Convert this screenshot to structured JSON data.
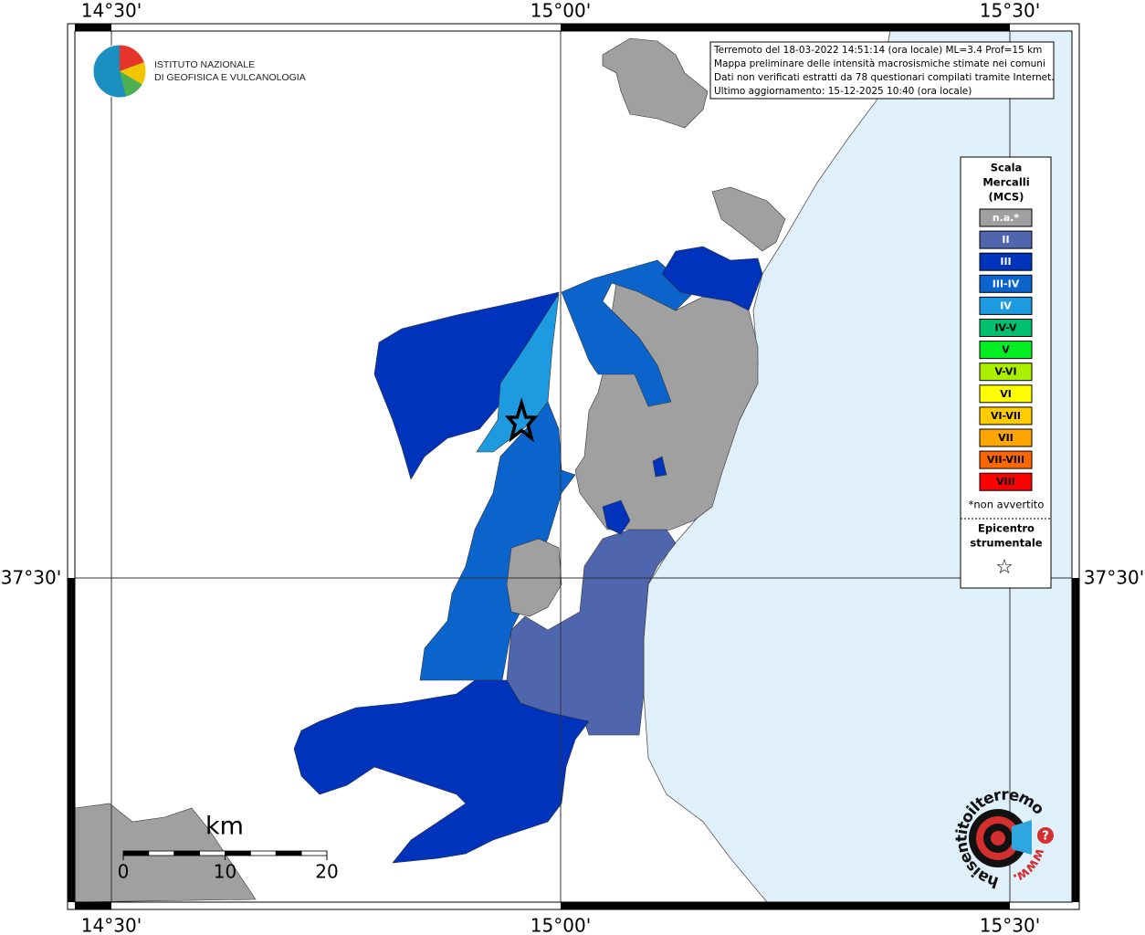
{
  "map": {
    "longitude_labels": [
      "14°30'",
      "15°00'",
      "15°30'"
    ],
    "latitude_label": "37°30'",
    "logo": {
      "lines": [
        "ISTITUTO NAZIONALE",
        "DI GEOFISICA E VULCANOLOGIA"
      ]
    },
    "info": {
      "lines": [
        "Terremoto del 18-03-2022 14:51:14 (ora locale) ML=3.4 Prof=15 km",
        "Mappa preliminare delle intensità macrosismiche stimate nei comuni",
        "Dati non verificati estratti da 78 questionari compilati tramite Internet.",
        "Ultimo aggiornamento: 15-12-2025 10:40 (ora locale)"
      ]
    },
    "legend": {
      "title": [
        "Scala",
        "Mercalli",
        "(MCS)"
      ],
      "classes": [
        {
          "label": "n.a.*",
          "color": "#a0a0a0"
        },
        {
          "label": "II",
          "color": "#4f66ae"
        },
        {
          "label": "III",
          "color": "#0033bb"
        },
        {
          "label": "III-IV",
          "color": "#0a64cc"
        },
        {
          "label": "IV",
          "color": "#1e9be0"
        },
        {
          "label": "IV-V",
          "color": "#00c070"
        },
        {
          "label": "V",
          "color": "#00ee22"
        },
        {
          "label": "V-VI",
          "color": "#aaee00"
        },
        {
          "label": "VI",
          "color": "#ffff00"
        },
        {
          "label": "VI-VII",
          "color": "#ffcc00"
        },
        {
          "label": "VII",
          "color": "#ffa500"
        },
        {
          "label": "VII-VIII",
          "color": "#ff6600"
        },
        {
          "label": "VIII",
          "color": "#ff0000"
        }
      ],
      "note": "*non avvertito",
      "epicenter": [
        "Epicentro",
        "strumentale"
      ],
      "epicenter_symbol": "☆"
    },
    "scale_bar": {
      "unit": "km",
      "ticks": [
        0,
        10,
        20
      ]
    },
    "site_logo": {
      "url": "haisentitoilterremoto.it",
      "prefix": "www.",
      "mark": "?"
    }
  }
}
